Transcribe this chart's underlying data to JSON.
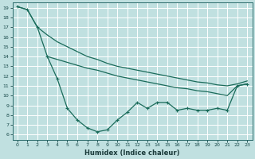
{
  "xlabel": "Humidex (Indice chaleur)",
  "bg_color": "#c0e0e0",
  "grid_color": "#ffffff",
  "line_color": "#1a6b5a",
  "xlim": [
    -0.5,
    23.5
  ],
  "ylim": [
    5.5,
    19.5
  ],
  "yticks": [
    6,
    7,
    8,
    9,
    10,
    11,
    12,
    13,
    14,
    15,
    16,
    17,
    18,
    19
  ],
  "xticks": [
    0,
    1,
    2,
    3,
    4,
    5,
    6,
    7,
    8,
    9,
    10,
    11,
    12,
    13,
    14,
    15,
    16,
    17,
    18,
    19,
    20,
    21,
    22,
    23
  ],
  "line1_x": [
    0,
    1,
    2,
    3,
    4,
    5,
    6,
    7,
    8,
    9,
    10,
    11,
    12,
    13,
    14,
    15,
    16,
    17,
    18,
    19,
    20,
    21,
    22,
    23
  ],
  "line1_y": [
    19.1,
    18.8,
    17.0,
    14.0,
    11.7,
    8.7,
    7.5,
    6.7,
    6.3,
    6.5,
    7.5,
    8.3,
    9.3,
    8.7,
    9.3,
    9.3,
    8.5,
    8.7,
    8.5,
    8.5,
    8.7,
    8.5,
    11.0,
    11.2
  ],
  "line2_x": [
    0,
    1,
    2,
    3,
    4,
    5,
    6,
    7,
    8,
    9,
    10,
    11,
    12,
    13,
    14,
    15,
    16,
    17,
    18,
    19,
    20,
    21,
    22,
    23
  ],
  "line2_y": [
    19.1,
    18.8,
    17.0,
    16.2,
    15.5,
    15.0,
    14.5,
    14.0,
    13.7,
    13.3,
    13.0,
    12.8,
    12.6,
    12.4,
    12.2,
    12.0,
    11.8,
    11.6,
    11.4,
    11.3,
    11.1,
    11.0,
    11.2,
    11.5
  ],
  "line3_x": [
    3,
    4,
    5,
    6,
    7,
    8,
    9,
    10,
    11,
    12,
    13,
    14,
    15,
    16,
    17,
    18,
    19,
    20,
    21,
    22,
    23
  ],
  "line3_y": [
    14.0,
    13.7,
    13.4,
    13.1,
    12.8,
    12.6,
    12.3,
    12.0,
    11.8,
    11.6,
    11.4,
    11.2,
    11.0,
    10.8,
    10.7,
    10.5,
    10.4,
    10.2,
    10.0,
    11.0,
    11.2
  ]
}
